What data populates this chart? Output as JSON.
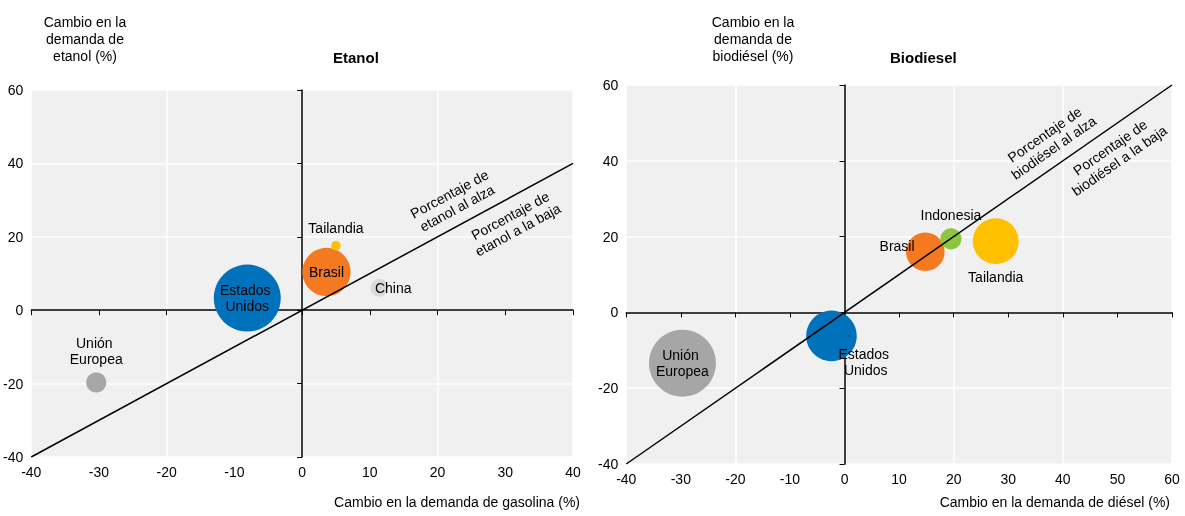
{
  "chart_data": [
    {
      "type": "bubble",
      "title": "Etanol",
      "ylabel": "Cambio en la\ndemanda de\netanol (%)",
      "xlabel": "Cambio en la demanda de gasolina (%)",
      "xlim": [
        -40,
        40
      ],
      "xticks": [
        -40,
        -30,
        -20,
        -10,
        0,
        10,
        20,
        30,
        40
      ],
      "ylim": [
        -40,
        60
      ],
      "yticks": [
        -40,
        -20,
        0,
        20,
        40,
        60
      ],
      "grid": true,
      "legend": false,
      "series": [
        {
          "name": "Estados Unidos",
          "color": "#0072bc",
          "x": [
            -8.1
          ],
          "values": [
            3.3
          ],
          "sizes": [
            1
          ]
        },
        {
          "name": "Brasil",
          "color": "#f47920",
          "x": [
            3.6
          ],
          "values": [
            10.4
          ],
          "sizes": [
            0.52
          ]
        },
        {
          "name": "Tailandia",
          "color": "#ffc000",
          "x": [
            5.0
          ],
          "values": [
            17.6
          ],
          "sizes": [
            0.02
          ]
        },
        {
          "name": "China",
          "color": "#d9d9d9",
          "x": [
            11.4
          ],
          "values": [
            6.1
          ],
          "sizes": [
            0.07
          ]
        },
        {
          "name": "Unión Europea",
          "color": "#a6a6a6",
          "x": [
            -30.4
          ],
          "values": [
            -19.7
          ],
          "sizes": [
            0.09
          ]
        },
        {
          "type": "line",
          "color": "#000000",
          "x": [
            -40,
            40
          ],
          "values": [
            -40,
            40
          ]
        }
      ],
      "annotations": [
        "Porcentaje de\netanol al alza",
        "Porcentaje de\netanol a la baja"
      ]
    },
    {
      "type": "bubble",
      "title": "Biodiesel",
      "ylabel": "Cambio en la\ndemanda de\nbiodiésel (%)",
      "xlabel": "Cambio en la demanda de diésel (%)",
      "xlim": [
        -40,
        60
      ],
      "xticks": [
        -40,
        -30,
        -20,
        -10,
        0,
        10,
        20,
        30,
        40,
        50,
        60
      ],
      "ylim": [
        -40,
        60
      ],
      "yticks": [
        -40,
        -20,
        0,
        20,
        40,
        60
      ],
      "grid": true,
      "legend": false,
      "series": [
        {
          "name": "Estados Unidos",
          "color": "#0072bc",
          "x": [
            -2.4
          ],
          "values": [
            -6.2
          ],
          "sizes": [
            0.57
          ]
        },
        {
          "name": "Unión Europea",
          "color": "#a6a6a6",
          "x": [
            -29.7
          ],
          "values": [
            -13.4
          ],
          "sizes": [
            1
          ]
        },
        {
          "name": "Brasil",
          "color": "#f47920",
          "x": [
            14.8
          ],
          "values": [
            16.0
          ],
          "sizes": [
            0.33
          ]
        },
        {
          "name": "Indonesia",
          "color": "#8cc63f",
          "x": [
            19.5
          ],
          "values": [
            19.4
          ],
          "sizes": [
            0.1
          ]
        },
        {
          "name": "Tailandia",
          "color": "#ffc000",
          "x": [
            27.7
          ],
          "values": [
            18.8
          ],
          "sizes": [
            0.47
          ]
        },
        {
          "type": "line",
          "color": "#000000",
          "x": [
            -40,
            60
          ],
          "values": [
            -40,
            60
          ]
        }
      ],
      "annotations": [
        "Porcentaje de\nbiodiésel al alza",
        "Porcentaje de\nbiodiésel a la baja"
      ]
    }
  ]
}
